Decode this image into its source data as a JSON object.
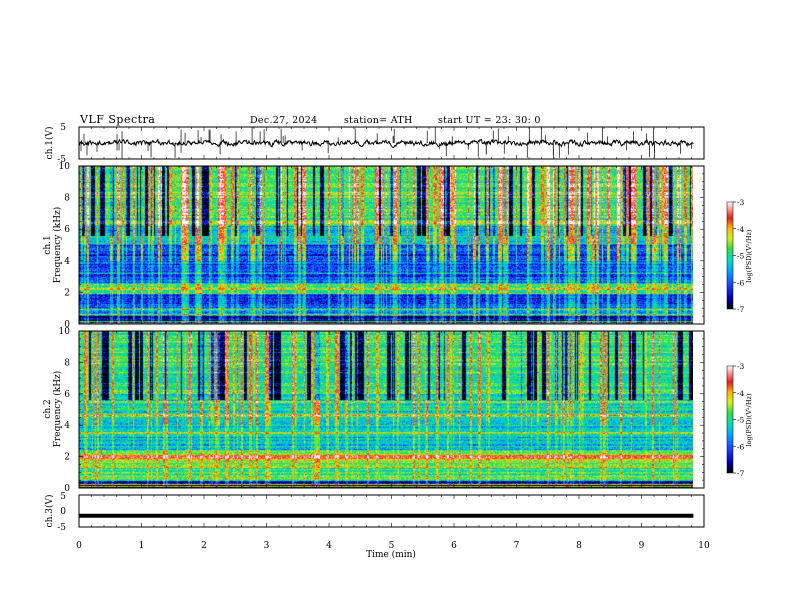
{
  "header": {
    "title": "VLF  Spectra",
    "date": "Dec.27, 2024",
    "station": "station= ATH",
    "start_ut": "start  UT  =   23: 30: 0"
  },
  "chart_data": [
    {
      "type": "line",
      "panel": "ch1-waveform",
      "ylabel": "ch.1(V)",
      "ylim": [
        -5,
        5
      ],
      "yticks": [
        "5",
        "-5"
      ],
      "xlim": [
        0,
        10
      ],
      "description_values": {
        "baseline_V": 0,
        "fluctuation_V": 0.8,
        "x_end_min": 9.83
      }
    },
    {
      "type": "heatmap",
      "panel": "ch1-spectrogram",
      "ylabel": "ch.1\nFrequency  (kHz)",
      "ylim": [
        0,
        10
      ],
      "yticks": [
        "0",
        "2",
        "4",
        "6",
        "8",
        "10"
      ],
      "xlim": [
        0,
        10
      ],
      "x_end_min": 9.83,
      "colorbar": {
        "label": "log(PSD)(V²/Hz)",
        "range": [
          -7,
          -3
        ],
        "ticks": [
          "-3",
          "-4",
          "-5",
          "-6",
          "-7"
        ]
      }
    },
    {
      "type": "heatmap",
      "panel": "ch2-spectrogram",
      "ylabel": "ch.2\nFrequency  (kHz)",
      "ylim": [
        0,
        10
      ],
      "yticks": [
        "0",
        "2",
        "4",
        "6",
        "8",
        "10"
      ],
      "xlim": [
        0,
        10
      ],
      "x_end_min": 9.83,
      "colorbar": {
        "label": "log(PSD)(V²/Hz)",
        "range": [
          -7,
          -3
        ],
        "ticks": [
          "-3",
          "-4",
          "-5",
          "-6",
          "-7"
        ]
      }
    },
    {
      "type": "line",
      "panel": "ch3-waveform",
      "ylabel": "ch.3(V)",
      "ylim": [
        -5,
        5
      ],
      "yticks": [
        "5",
        "0",
        "-5"
      ],
      "xlim": [
        0,
        10
      ],
      "xlabel": "Time  (min)",
      "xticks": [
        "0",
        "1",
        "2",
        "3",
        "4",
        "5",
        "6",
        "7",
        "8",
        "9",
        "10"
      ],
      "description_values": {
        "level_V": -1.5,
        "x_end_min": 9.83
      }
    }
  ],
  "colors": {
    "colormap": [
      "#000000",
      "#0000c8",
      "#1e3cff",
      "#00a0ff",
      "#00e0c0",
      "#30e040",
      "#d0f020",
      "#ffb000",
      "#e02020",
      "#ff9090",
      "#ffffff"
    ]
  }
}
